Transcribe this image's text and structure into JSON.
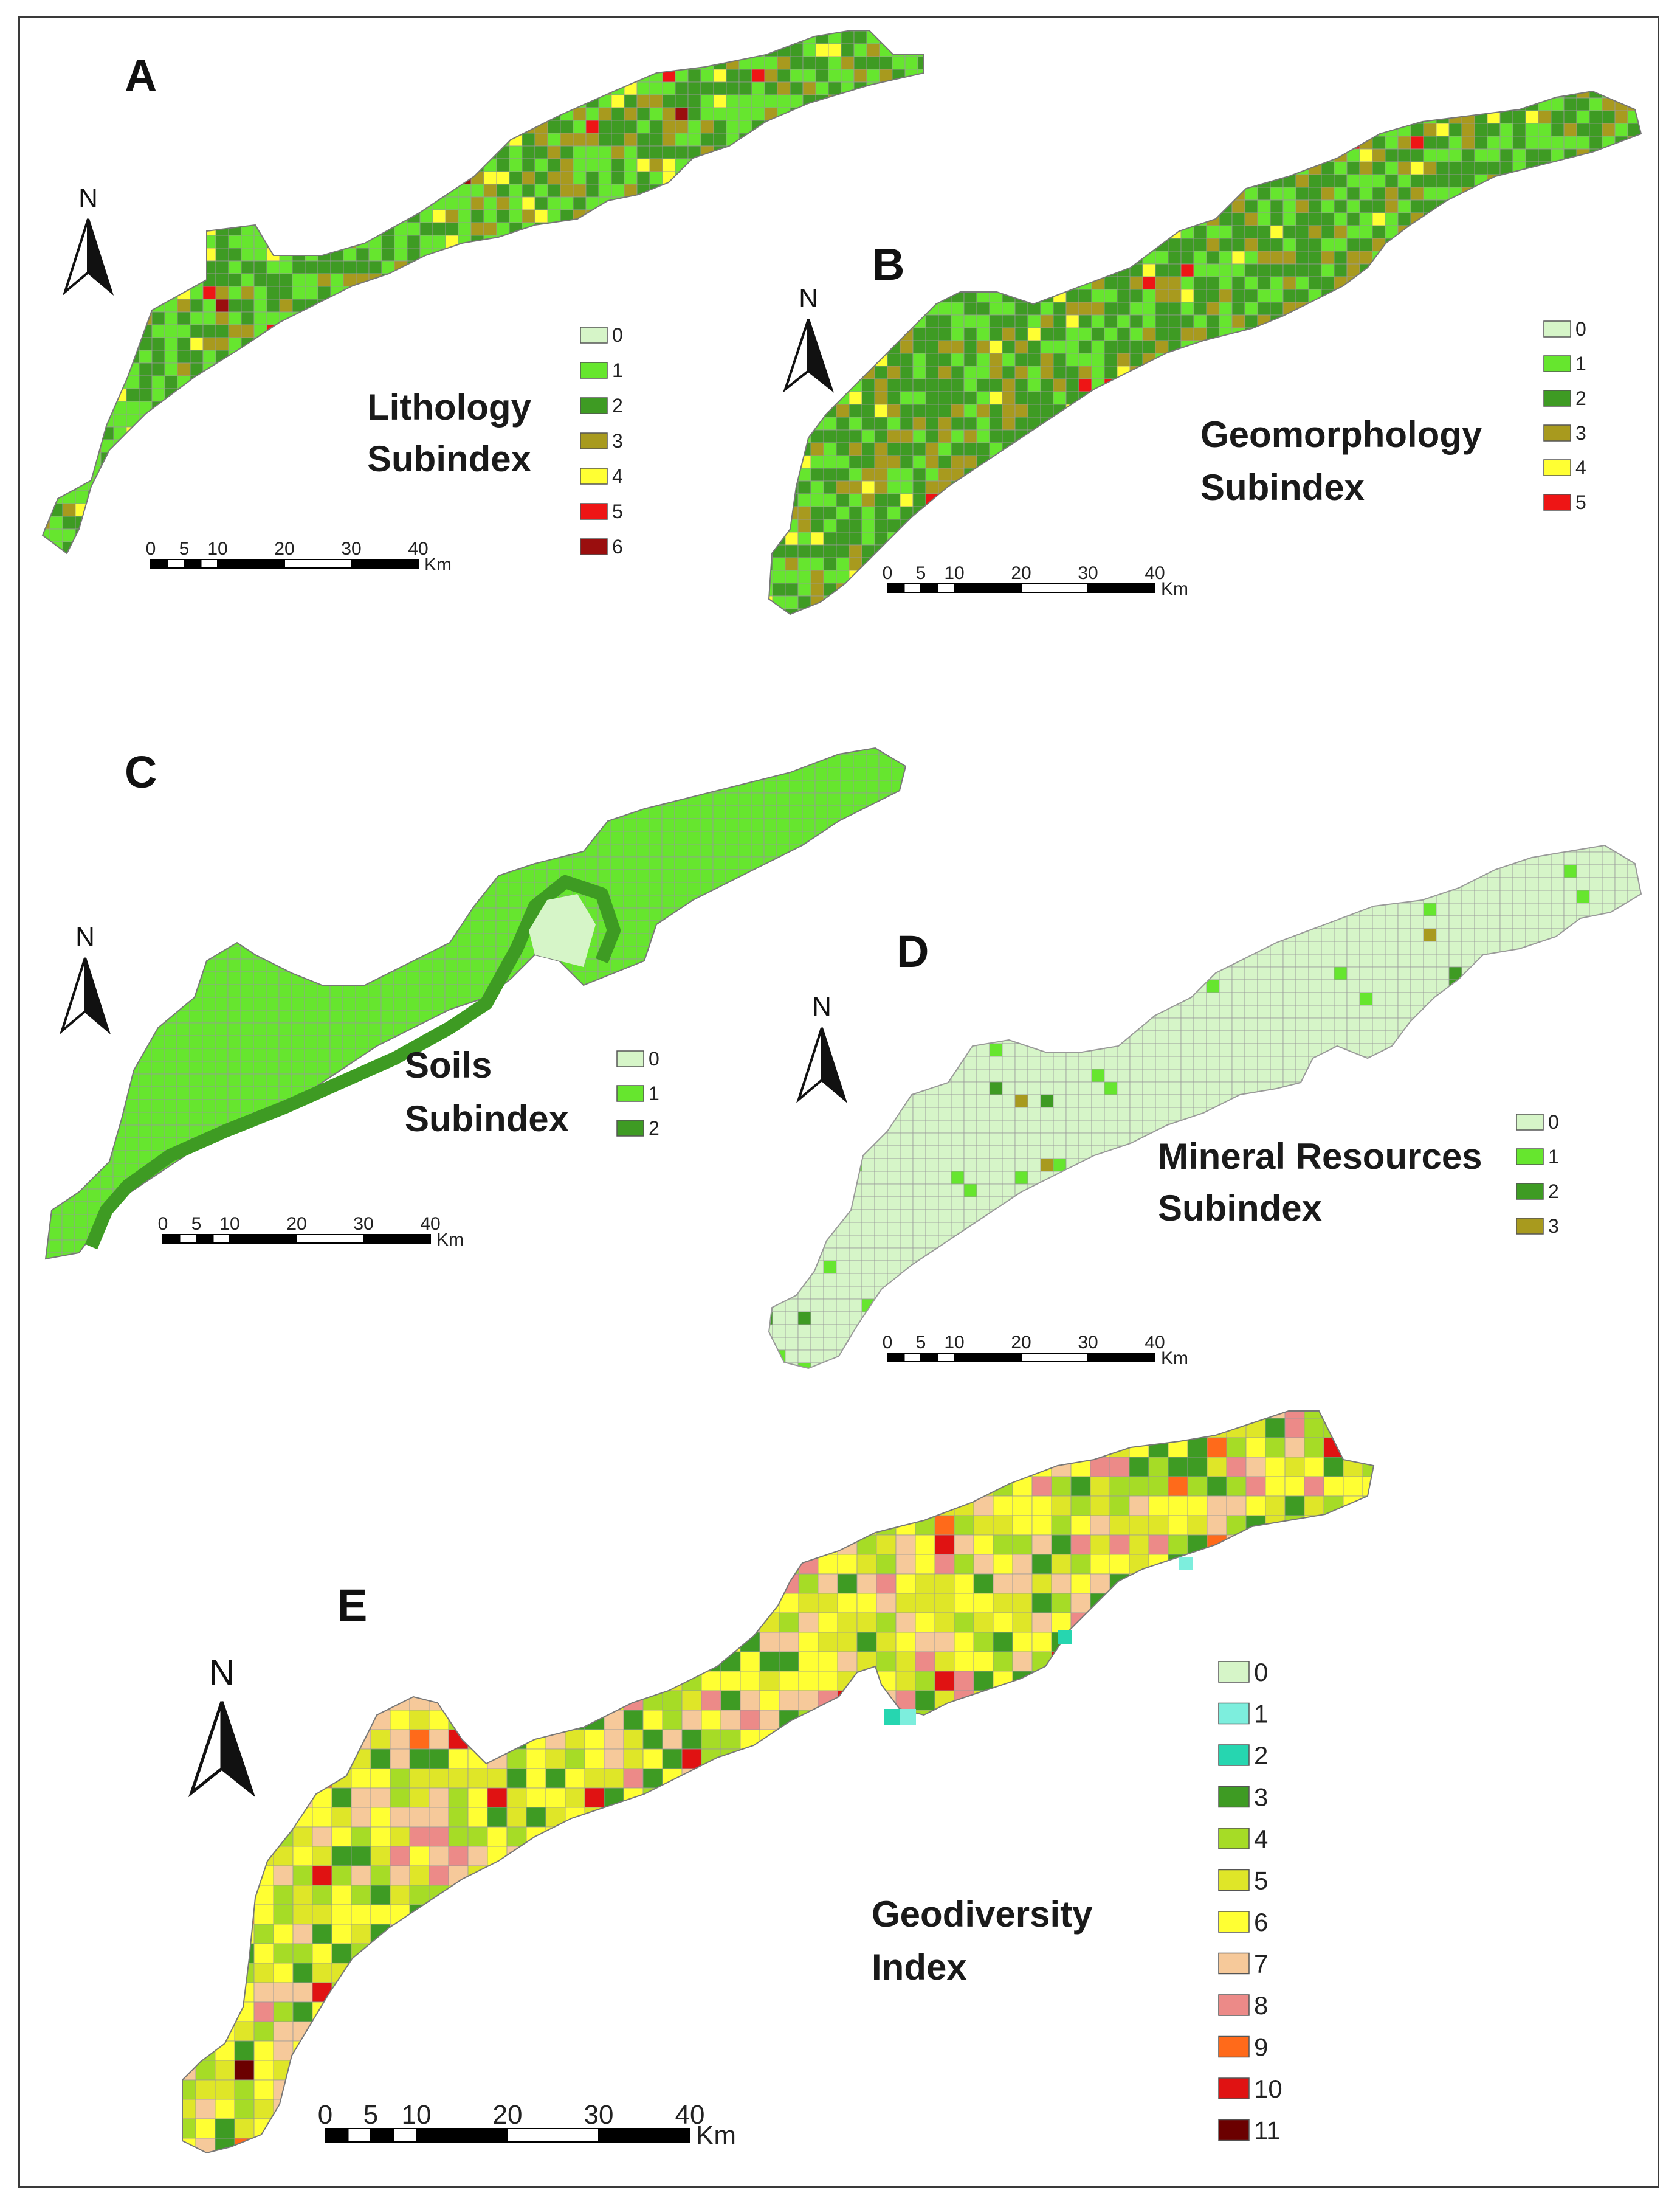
{
  "colors": {
    "c0": "#d6f5c8",
    "c1": "#66e62e",
    "c2": "#3e9b23",
    "c3": "#a89a1e",
    "c4": "#ffff33",
    "c5": "#ee1515",
    "c6": "#9a0e0e",
    "e0": "#d6f5c8",
    "e1": "#7deedd",
    "e2": "#26d6b0",
    "e3": "#3e9b23",
    "e4": "#a6dc26",
    "e5": "#dfe628",
    "e6": "#ffff33",
    "e7": "#f6c99a",
    "e8": "#ec8a88",
    "e9": "#ff6a1a",
    "e10": "#e01212",
    "e11": "#6b0000",
    "grid_line": "#9a9a9a"
  },
  "panels": [
    {
      "id": "A",
      "letter": "A",
      "title_lines": [
        "Lithology",
        "Subindex"
      ],
      "legend": [
        {
          "label": "0",
          "color": "#d6f5c8"
        },
        {
          "label": "1",
          "color": "#66e62e"
        },
        {
          "label": "2",
          "color": "#3e9b23"
        },
        {
          "label": "3",
          "color": "#a89a1e"
        },
        {
          "label": "4",
          "color": "#ffff33"
        },
        {
          "label": "5",
          "color": "#ee1515"
        },
        {
          "label": "6",
          "color": "#9a0e0e"
        }
      ],
      "scale_ticks": [
        "0",
        "5",
        "10",
        "20",
        "30",
        "40"
      ],
      "scale_unit": "Km",
      "north_label": "N",
      "palette": [
        "#66e62e",
        "#3e9b23",
        "#a89a1e",
        "#ffff33",
        "#ee1515",
        "#9a0e0e"
      ],
      "weights": [
        0.42,
        0.36,
        0.14,
        0.06,
        0.015,
        0.005
      ]
    },
    {
      "id": "B",
      "letter": "B",
      "title_lines": [
        "Geomorphology",
        "Subindex"
      ],
      "legend": [
        {
          "label": "0",
          "color": "#d6f5c8"
        },
        {
          "label": "1",
          "color": "#66e62e"
        },
        {
          "label": "2",
          "color": "#3e9b23"
        },
        {
          "label": "3",
          "color": "#a89a1e"
        },
        {
          "label": "4",
          "color": "#ffff33"
        },
        {
          "label": "5",
          "color": "#ee1515"
        }
      ],
      "scale_ticks": [
        "0",
        "5",
        "10",
        "20",
        "30",
        "40"
      ],
      "scale_unit": "Km",
      "north_label": "N",
      "palette": [
        "#66e62e",
        "#3e9b23",
        "#a89a1e",
        "#ffff33",
        "#ee1515"
      ],
      "weights": [
        0.28,
        0.46,
        0.22,
        0.035,
        0.005
      ]
    },
    {
      "id": "C",
      "letter": "C",
      "title_lines": [
        "Soils",
        "Subindex"
      ],
      "legend": [
        {
          "label": "0",
          "color": "#d6f5c8"
        },
        {
          "label": "1",
          "color": "#66e62e"
        },
        {
          "label": "2",
          "color": "#3e9b23"
        }
      ],
      "scale_ticks": [
        "0",
        "5",
        "10",
        "20",
        "30",
        "40"
      ],
      "scale_unit": "Km",
      "north_label": "N",
      "palette": [
        "#66e62e"
      ],
      "weights": [
        1.0
      ]
    },
    {
      "id": "D",
      "letter": "D",
      "title_lines": [
        "Mineral Resources",
        "Subindex"
      ],
      "legend": [
        {
          "label": "0",
          "color": "#d6f5c8"
        },
        {
          "label": "1",
          "color": "#66e62e"
        },
        {
          "label": "2",
          "color": "#3e9b23"
        },
        {
          "label": "3",
          "color": "#a89a1e"
        }
      ],
      "scale_ticks": [
        "0",
        "5",
        "10",
        "20",
        "30",
        "40"
      ],
      "scale_unit": "Km",
      "north_label": "N",
      "palette": [
        "#d6f5c8",
        "#66e62e",
        "#3e9b23",
        "#a89a1e"
      ],
      "weights": [
        0.965,
        0.025,
        0.008,
        0.002
      ]
    },
    {
      "id": "E",
      "letter": "E",
      "title_lines": [
        "Geodiversity",
        "Index"
      ],
      "legend": [
        {
          "label": "0",
          "color": "#d6f5c8"
        },
        {
          "label": "1",
          "color": "#7deedd"
        },
        {
          "label": "2",
          "color": "#26d6b0"
        },
        {
          "label": "3",
          "color": "#3e9b23"
        },
        {
          "label": "4",
          "color": "#a6dc26"
        },
        {
          "label": "5",
          "color": "#dfe628"
        },
        {
          "label": "6",
          "color": "#ffff33"
        },
        {
          "label": "7",
          "color": "#f6c99a"
        },
        {
          "label": "8",
          "color": "#ec8a88"
        },
        {
          "label": "9",
          "color": "#ff6a1a"
        },
        {
          "label": "10",
          "color": "#e01212"
        },
        {
          "label": "11",
          "color": "#6b0000"
        }
      ],
      "scale_ticks": [
        "0",
        "5",
        "10",
        "20",
        "30",
        "40"
      ],
      "scale_unit": "Km",
      "north_label": "N",
      "palette": [
        "#3e9b23",
        "#a6dc26",
        "#dfe628",
        "#ffff33",
        "#f6c99a",
        "#ec8a88",
        "#ff6a1a",
        "#e01212",
        "#6b0000"
      ],
      "weights": [
        0.1,
        0.16,
        0.2,
        0.3,
        0.16,
        0.05,
        0.015,
        0.01,
        0.005
      ]
    }
  ]
}
